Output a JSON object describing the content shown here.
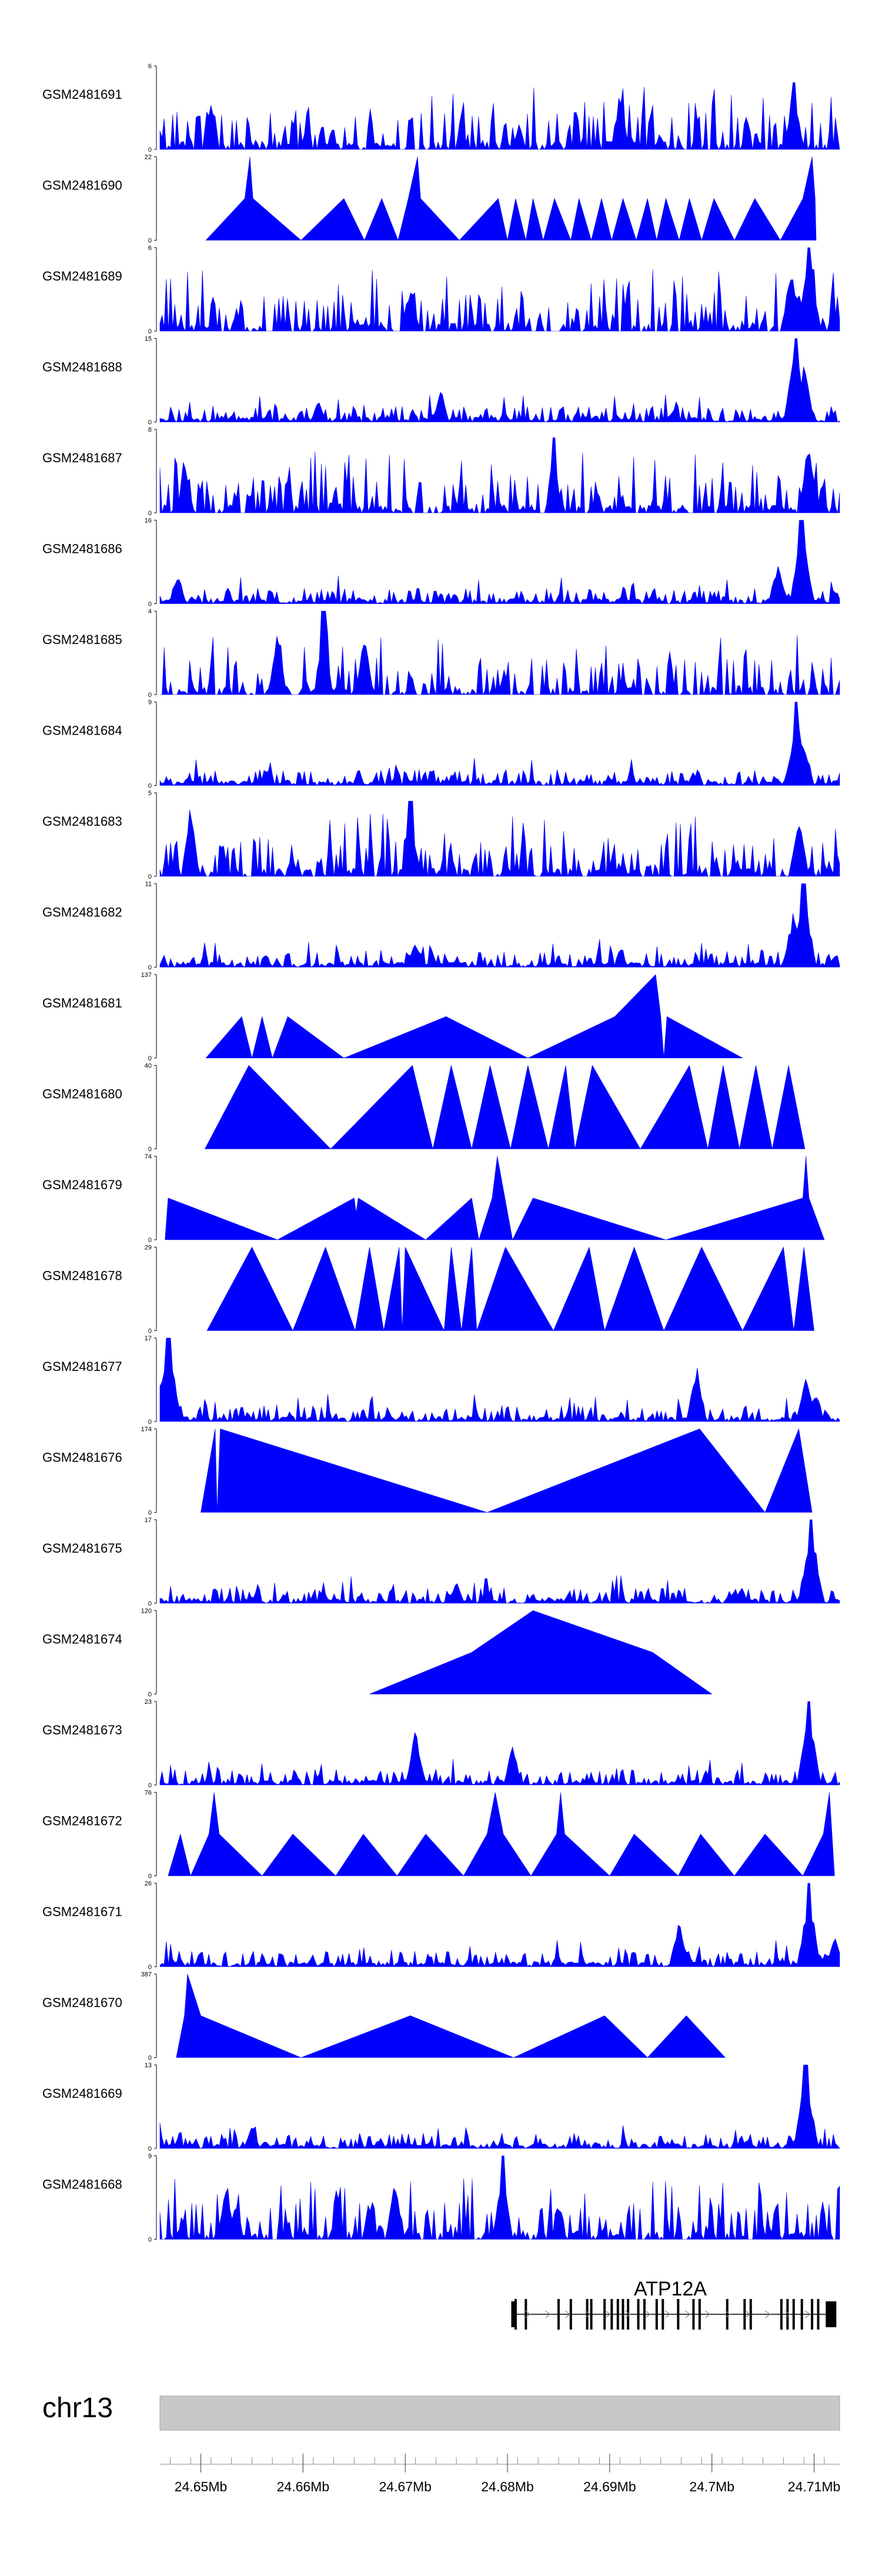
{
  "chart_data": {
    "type": "area",
    "chromosome": "chr13",
    "x_range_mb": [
      24.646,
      24.7125
    ],
    "x_ticks": [
      "24.65Mb",
      "24.66Mb",
      "24.67Mb",
      "24.68Mb",
      "24.69Mb",
      "24.7Mb",
      "24.71Mb"
    ],
    "x_tick_values": [
      24.65,
      24.66,
      24.67,
      24.68,
      24.69,
      24.7,
      24.71
    ],
    "fill_color": "#0000ff",
    "ideogram_color": "#c8c8c8",
    "gene": {
      "name": "ATP12A",
      "start": 24.6806,
      "end": 24.712,
      "exons": [
        24.6808,
        24.6818,
        24.685,
        24.6862,
        24.6878,
        24.6882,
        24.6895,
        24.6902,
        24.6908,
        24.6913,
        24.6918,
        24.6928,
        24.6934,
        24.6946,
        24.6952,
        24.6967,
        24.6982,
        24.6988,
        24.7015,
        24.7032,
        24.7038,
        24.7068,
        24.7074,
        24.708,
        24.7088,
        24.7098,
        24.7104
      ]
    },
    "series": [
      {
        "name": "GSM2481691",
        "ymax": "6",
        "ylim": [
          0,
          6
        ],
        "style": "dense",
        "seed": 1,
        "peaks": [
          [
            24.708,
            0.8,
            0.4
          ],
          [
            24.691,
            0.7,
            0.3
          ],
          [
            24.651,
            0.6,
            0.2
          ]
        ]
      },
      {
        "name": "GSM2481690",
        "ymax": "22",
        "ylim": [
          0,
          22
        ],
        "style": "sparse",
        "points": [
          [
            24.6505,
            0
          ],
          [
            24.6543,
            11
          ],
          [
            24.6548,
            22
          ],
          [
            24.6551,
            11
          ],
          [
            24.6598,
            0
          ],
          [
            24.664,
            11
          ],
          [
            24.666,
            0
          ],
          [
            24.6677,
            11
          ],
          [
            24.6693,
            0
          ],
          [
            24.6703,
            11
          ],
          [
            24.6712,
            22
          ],
          [
            24.6715,
            11
          ],
          [
            24.6753,
            0
          ],
          [
            24.6791,
            11
          ],
          [
            24.68,
            0
          ],
          [
            24.6808,
            11
          ],
          [
            24.6818,
            0
          ],
          [
            24.6825,
            11
          ],
          [
            24.6835,
            0
          ],
          [
            24.6846,
            11
          ],
          [
            24.6862,
            0
          ],
          [
            24.687,
            11
          ],
          [
            24.6882,
            0
          ],
          [
            24.6892,
            11
          ],
          [
            24.6902,
            0
          ],
          [
            24.6913,
            11
          ],
          [
            24.6926,
            0
          ],
          [
            24.6937,
            11
          ],
          [
            24.6946,
            0
          ],
          [
            24.6955,
            11
          ],
          [
            24.6968,
            0
          ],
          [
            24.6978,
            11
          ],
          [
            24.699,
            0
          ],
          [
            24.7002,
            11
          ],
          [
            24.7022,
            0
          ],
          [
            24.7042,
            11
          ],
          [
            24.7067,
            0
          ],
          [
            24.7089,
            11
          ],
          [
            24.7098,
            22
          ],
          [
            24.7101,
            11
          ],
          [
            24.7102,
            0
          ]
        ]
      },
      {
        "name": "GSM2481689",
        "ymax": "6",
        "ylim": [
          0,
          6
        ],
        "style": "dense",
        "seed": 3,
        "peaks": [
          [
            24.7095,
            1.0,
            0.6
          ],
          [
            24.7078,
            0.8,
            0.5
          ],
          [
            24.6705,
            0.6,
            0.3
          ]
        ]
      },
      {
        "name": "GSM2481688",
        "ymax": "15",
        "ylim": [
          0,
          15
        ],
        "style": "lowpeak",
        "seed": 4,
        "peaks": [
          [
            24.7082,
            1.0,
            0.6
          ],
          [
            24.709,
            0.7,
            0.5
          ],
          [
            24.6735,
            0.4,
            0.2
          ],
          [
            24.6615,
            0.3,
            0.15
          ]
        ]
      },
      {
        "name": "GSM2481687",
        "ymax": "8",
        "ylim": [
          0,
          8
        ],
        "style": "dense",
        "seed": 5,
        "peaks": [
          [
            24.6845,
            0.9,
            0.2
          ],
          [
            24.7095,
            0.9,
            0.5
          ],
          [
            24.6485,
            0.6,
            0.2
          ]
        ]
      },
      {
        "name": "GSM2481686",
        "ymax": "16",
        "ylim": [
          0,
          16
        ],
        "style": "lowpeak",
        "seed": 6,
        "peaks": [
          [
            24.7088,
            1.0,
            0.6
          ],
          [
            24.7065,
            0.5,
            0.4
          ],
          [
            24.6478,
            0.4,
            0.2
          ]
        ]
      },
      {
        "name": "GSM2481685",
        "ymax": "4",
        "ylim": [
          0,
          4
        ],
        "style": "dense",
        "seed": 7,
        "peaks": [
          [
            24.662,
            1.0,
            0.3
          ],
          [
            24.6575,
            0.8,
            0.3
          ],
          [
            24.666,
            0.8,
            0.3
          ]
        ]
      },
      {
        "name": "GSM2481684",
        "ymax": "9",
        "ylim": [
          0,
          9
        ],
        "style": "lowpeak",
        "seed": 8,
        "peaks": [
          [
            24.7083,
            1.0,
            0.5
          ],
          [
            24.709,
            0.6,
            0.4
          ]
        ]
      },
      {
        "name": "GSM2481683",
        "ymax": "5",
        "ylim": [
          0,
          5
        ],
        "style": "dense",
        "seed": 9,
        "peaks": [
          [
            24.6705,
            0.9,
            0.3
          ],
          [
            24.649,
            0.9,
            0.3
          ],
          [
            24.7085,
            0.8,
            0.4
          ]
        ]
      },
      {
        "name": "GSM2481682",
        "ymax": "11",
        "ylim": [
          0,
          11
        ],
        "style": "lowpeak",
        "seed": 10,
        "peaks": [
          [
            24.709,
            1.0,
            0.6
          ],
          [
            24.708,
            0.7,
            0.5
          ],
          [
            24.671,
            0.35,
            0.2
          ]
        ]
      },
      {
        "name": "GSM2481681",
        "ymax": "137",
        "ylim": [
          0,
          137
        ],
        "style": "sparse",
        "points": [
          [
            24.6505,
            0
          ],
          [
            24.654,
            68
          ],
          [
            24.655,
            0
          ],
          [
            24.656,
            68
          ],
          [
            24.657,
            0
          ],
          [
            24.6585,
            68
          ],
          [
            24.664,
            0
          ],
          [
            24.674,
            68
          ],
          [
            24.682,
            0
          ],
          [
            24.6905,
            68
          ],
          [
            24.6945,
            137
          ],
          [
            24.695,
            68
          ],
          [
            24.6953,
            0
          ],
          [
            24.6956,
            68
          ],
          [
            24.703,
            0
          ]
        ]
      },
      {
        "name": "GSM2481680",
        "ymax": "40",
        "ylim": [
          0,
          40
        ],
        "style": "sparse",
        "points": [
          [
            24.6504,
            0
          ],
          [
            24.6547,
            40
          ],
          [
            24.6627,
            0
          ],
          [
            24.6707,
            40
          ],
          [
            24.6727,
            0
          ],
          [
            24.6745,
            40
          ],
          [
            24.6765,
            0
          ],
          [
            24.6783,
            40
          ],
          [
            24.6803,
            0
          ],
          [
            24.682,
            40
          ],
          [
            24.684,
            0
          ],
          [
            24.6857,
            40
          ],
          [
            24.6866,
            0
          ],
          [
            24.6883,
            40
          ],
          [
            24.693,
            0
          ],
          [
            24.6978,
            40
          ],
          [
            24.6996,
            0
          ],
          [
            24.7011,
            40
          ],
          [
            24.7027,
            0
          ],
          [
            24.7043,
            40
          ],
          [
            24.7059,
            0
          ],
          [
            24.7075,
            40
          ],
          [
            24.7091,
            0
          ]
        ]
      },
      {
        "name": "GSM2481679",
        "ymax": "74",
        "ylim": [
          0,
          74
        ],
        "style": "sparse",
        "points": [
          [
            24.6465,
            0
          ],
          [
            24.6468,
            37
          ],
          [
            24.6575,
            0
          ],
          [
            24.665,
            37
          ],
          [
            24.6652,
            24
          ],
          [
            24.6654,
            37
          ],
          [
            24.672,
            0
          ],
          [
            24.6765,
            37
          ],
          [
            24.6772,
            0
          ],
          [
            24.6785,
            37
          ],
          [
            24.679,
            74
          ],
          [
            24.6805,
            0
          ],
          [
            24.6825,
            37
          ],
          [
            24.6955,
            0
          ],
          [
            24.7089,
            37
          ],
          [
            24.7092,
            74
          ],
          [
            24.7095,
            37
          ],
          [
            24.711,
            0
          ]
        ]
      },
      {
        "name": "GSM2481678",
        "ymax": "29",
        "ylim": [
          0,
          29
        ],
        "style": "sparse",
        "points": [
          [
            24.6506,
            0
          ],
          [
            24.655,
            29
          ],
          [
            24.659,
            0
          ],
          [
            24.6622,
            29
          ],
          [
            24.6651,
            0
          ],
          [
            24.6665,
            29
          ],
          [
            24.6679,
            0
          ],
          [
            24.6694,
            29
          ],
          [
            24.6697,
            0
          ],
          [
            24.67,
            29
          ],
          [
            24.6738,
            0
          ],
          [
            24.6745,
            29
          ],
          [
            24.6755,
            0
          ],
          [
            24.6765,
            29
          ],
          [
            24.677,
            0
          ],
          [
            24.6798,
            29
          ],
          [
            24.6845,
            0
          ],
          [
            24.688,
            29
          ],
          [
            24.6895,
            0
          ],
          [
            24.6924,
            29
          ],
          [
            24.6953,
            0
          ],
          [
            24.699,
            29
          ],
          [
            24.703,
            0
          ],
          [
            24.707,
            29
          ],
          [
            24.708,
            0
          ],
          [
            24.709,
            29
          ],
          [
            24.71,
            0
          ]
        ]
      },
      {
        "name": "GSM2481677",
        "ymax": "17",
        "ylim": [
          0,
          17
        ],
        "style": "lowpeak",
        "seed": 15,
        "peaks": [
          [
            24.6468,
            1.0,
            0.8
          ],
          [
            24.6985,
            0.7,
            0.4
          ],
          [
            24.7092,
            0.6,
            0.4
          ],
          [
            24.7101,
            0.4,
            0.3
          ]
        ]
      },
      {
        "name": "GSM2481676",
        "ymax": "174",
        "ylim": [
          0,
          174
        ],
        "style": "sparse",
        "points": [
          [
            24.65,
            0
          ],
          [
            24.6514,
            174
          ],
          [
            24.6516,
            0
          ],
          [
            24.6519,
            174
          ],
          [
            24.678,
            0
          ],
          [
            24.6988,
            174
          ],
          [
            24.7052,
            0
          ],
          [
            24.7085,
            174
          ],
          [
            24.7098,
            0
          ]
        ]
      },
      {
        "name": "GSM2481675",
        "ymax": "17",
        "ylim": [
          0,
          17
        ],
        "style": "lowpeak",
        "seed": 17,
        "peaks": [
          [
            24.7097,
            1.0,
            0.7
          ],
          [
            24.675,
            0.3,
            0.2
          ]
        ]
      },
      {
        "name": "GSM2481674",
        "ymax": "120",
        "ylim": [
          0,
          120
        ],
        "style": "sparse",
        "points": [
          [
            24.6665,
            0
          ],
          [
            24.6765,
            60
          ],
          [
            24.6825,
            120
          ],
          [
            24.6942,
            60
          ],
          [
            24.7,
            0
          ]
        ]
      },
      {
        "name": "GSM2481673",
        "ymax": "23",
        "ylim": [
          0,
          23
        ],
        "style": "lowpeak",
        "seed": 19,
        "peaks": [
          [
            24.7095,
            1.0,
            0.6
          ],
          [
            24.671,
            0.7,
            0.4
          ],
          [
            24.6805,
            0.5,
            0.3
          ]
        ]
      },
      {
        "name": "GSM2481672",
        "ymax": "76",
        "ylim": [
          0,
          76
        ],
        "style": "sparse",
        "points": [
          [
            24.6468,
            0
          ],
          [
            24.648,
            38
          ],
          [
            24.649,
            0
          ],
          [
            24.6508,
            38
          ],
          [
            24.6513,
            76
          ],
          [
            24.6518,
            38
          ],
          [
            24.656,
            0
          ],
          [
            24.659,
            38
          ],
          [
            24.6632,
            0
          ],
          [
            24.6659,
            38
          ],
          [
            24.6692,
            0
          ],
          [
            24.672,
            38
          ],
          [
            24.6757,
            0
          ],
          [
            24.678,
            38
          ],
          [
            24.6788,
            76
          ],
          [
            24.6796,
            38
          ],
          [
            24.6823,
            0
          ],
          [
            24.6848,
            38
          ],
          [
            24.6852,
            76
          ],
          [
            24.6856,
            38
          ],
          [
            24.69,
            0
          ],
          [
            24.6924,
            38
          ],
          [
            24.6967,
            0
          ],
          [
            24.6989,
            38
          ],
          [
            24.7022,
            0
          ],
          [
            24.7052,
            38
          ],
          [
            24.7089,
            0
          ],
          [
            24.7109,
            38
          ],
          [
            24.7115,
            76
          ],
          [
            24.712,
            0
          ]
        ]
      },
      {
        "name": "GSM2481671",
        "ymax": "26",
        "ylim": [
          0,
          26
        ],
        "style": "lowpeak",
        "seed": 21,
        "peaks": [
          [
            24.7095,
            1.0,
            0.5
          ],
          [
            24.6968,
            0.6,
            0.4
          ],
          [
            24.712,
            0.4,
            0.3
          ]
        ]
      },
      {
        "name": "GSM2481670",
        "ymax": "387",
        "ylim": [
          0,
          387
        ],
        "style": "sparse",
        "points": [
          [
            24.6476,
            0
          ],
          [
            24.6484,
            194
          ],
          [
            24.6487,
            387
          ],
          [
            24.65,
            194
          ],
          [
            24.6598,
            0
          ],
          [
            24.6705,
            194
          ],
          [
            24.6806,
            0
          ],
          [
            24.6895,
            194
          ],
          [
            24.6937,
            0
          ],
          [
            24.6975,
            194
          ],
          [
            24.7013,
            0
          ]
        ]
      },
      {
        "name": "GSM2481669",
        "ymax": "13",
        "ylim": [
          0,
          13
        ],
        "style": "lowpeak",
        "seed": 23,
        "peaks": [
          [
            24.7092,
            1.0,
            0.6
          ],
          [
            24.655,
            0.3,
            0.2
          ]
        ]
      },
      {
        "name": "GSM2481668",
        "ymax": "9",
        "ylim": [
          0,
          9
        ],
        "style": "dense",
        "seed": 24,
        "peaks": [
          [
            24.6795,
            1.0,
            0.3
          ],
          [
            24.669,
            0.8,
            0.3
          ],
          [
            24.6525,
            0.75,
            0.3
          ]
        ]
      }
    ]
  }
}
